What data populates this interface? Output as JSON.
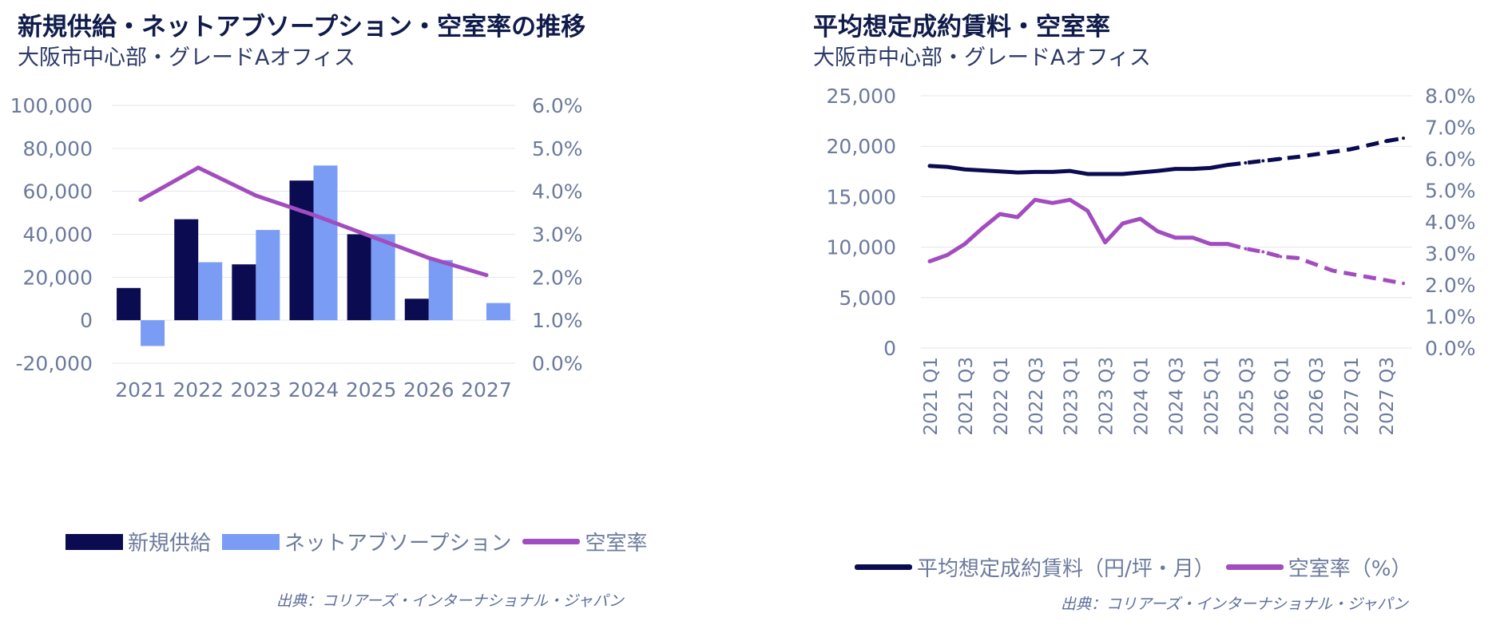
{
  "left": {
    "title": "新規供給・ネットアブソープション・空室率の推移",
    "subtitle": "大阪市中心部・グレードAオフィス",
    "source": "出典：コリアーズ・インターナショナル・ジャパン",
    "legend": [
      {
        "label": "新規供給",
        "color": "#0b0b52",
        "kind": "box"
      },
      {
        "label": "ネットアブソープション",
        "color": "#7a9cf5",
        "kind": "box"
      },
      {
        "label": "空室率",
        "color": "#a24dbf",
        "kind": "line"
      }
    ]
  },
  "right": {
    "title": "平均想定成約賃料・空室率",
    "subtitle": "大阪市中心部・グレードAオフィス",
    "source": "出典：コリアーズ・インターナショナル・ジャパン",
    "legend": [
      {
        "label": "平均想定成約賃料（円/坪・月）",
        "color": "#0b0b52",
        "kind": "line"
      },
      {
        "label": "空室率（%）",
        "color": "#a24dbf",
        "kind": "line"
      }
    ]
  },
  "chart_data": [
    {
      "type": "bar",
      "categories": [
        "2021",
        "2022",
        "2023",
        "2024",
        "2025",
        "2026",
        "2027"
      ],
      "series": [
        {
          "name": "新規供給",
          "type": "bar",
          "axis": "left",
          "color": "#0b0b52",
          "values": [
            15000,
            47000,
            26000,
            65000,
            40000,
            10000,
            0
          ]
        },
        {
          "name": "ネットアブソープション",
          "type": "bar",
          "axis": "left",
          "color": "#7a9cf5",
          "values": [
            -12000,
            27000,
            42000,
            72000,
            40000,
            28000,
            8000
          ]
        },
        {
          "name": "空室率",
          "type": "line",
          "axis": "right",
          "color": "#a24dbf",
          "values": [
            3.8,
            4.55,
            3.9,
            3.45,
            2.95,
            2.45,
            2.05
          ]
        }
      ],
      "y_left": {
        "min": -20000,
        "max": 100000,
        "ticks": [
          "-20,000",
          "0",
          "20,000",
          "40,000",
          "60,000",
          "80,000",
          "100,000"
        ]
      },
      "y_right": {
        "min": 0,
        "max": 6,
        "ticks": [
          "0.0%",
          "1.0%",
          "2.0%",
          "3.0%",
          "4.0%",
          "5.0%",
          "6.0%"
        ]
      },
      "grid": true,
      "legend_position": "bottom"
    },
    {
      "type": "line",
      "categories": [
        "2021 Q1",
        "2021 Q2",
        "2021 Q3",
        "2021 Q4",
        "2022 Q1",
        "2022 Q2",
        "2022 Q3",
        "2022 Q4",
        "2023 Q1",
        "2023 Q2",
        "2023 Q3",
        "2023 Q4",
        "2024 Q1",
        "2024 Q2",
        "2024 Q3",
        "2024 Q4",
        "2025 Q1",
        "2025 Q2",
        "2025 Q3",
        "2025 Q4",
        "2026 Q1",
        "2026 Q2",
        "2026 Q3",
        "2026 Q4",
        "2027 Q1",
        "2027 Q2",
        "2027 Q3",
        "2027 Q4"
      ],
      "x_tick_labels": [
        "2021 Q1",
        "2021 Q3",
        "2022 Q1",
        "2022 Q3",
        "2023 Q1",
        "2023 Q3",
        "2024 Q1",
        "2024 Q3",
        "2025 Q1",
        "2025 Q3",
        "2026 Q1",
        "2026 Q3",
        "2027 Q1",
        "2027 Q3"
      ],
      "forecast_from_index": 17,
      "series": [
        {
          "name": "平均想定成約賃料（円/坪・月）",
          "axis": "left",
          "color": "#0b0b52",
          "values": [
            18050,
            17950,
            17700,
            17600,
            17500,
            17400,
            17450,
            17450,
            17550,
            17250,
            17250,
            17250,
            17400,
            17550,
            17750,
            17750,
            17850,
            18150,
            18350,
            18550,
            18750,
            18950,
            19200,
            19450,
            19700,
            20100,
            20500,
            20800
          ]
        },
        {
          "name": "空室率（%）",
          "axis": "right",
          "color": "#a24dbf",
          "values": [
            2.75,
            2.95,
            3.3,
            3.8,
            4.25,
            4.15,
            4.7,
            4.6,
            4.7,
            4.35,
            3.35,
            3.95,
            4.1,
            3.7,
            3.5,
            3.5,
            3.3,
            3.3,
            3.15,
            3.05,
            2.9,
            2.85,
            2.65,
            2.45,
            2.35,
            2.25,
            2.15,
            2.05
          ]
        }
      ],
      "y_left": {
        "min": 0,
        "max": 25000,
        "ticks": [
          "0",
          "5,000",
          "10,000",
          "15,000",
          "20,000",
          "25,000"
        ]
      },
      "y_right": {
        "min": 0,
        "max": 8,
        "ticks": [
          "0.0%",
          "1.0%",
          "2.0%",
          "3.0%",
          "4.0%",
          "5.0%",
          "6.0%",
          "7.0%",
          "8.0%"
        ]
      },
      "grid": true,
      "legend_position": "bottom"
    }
  ]
}
